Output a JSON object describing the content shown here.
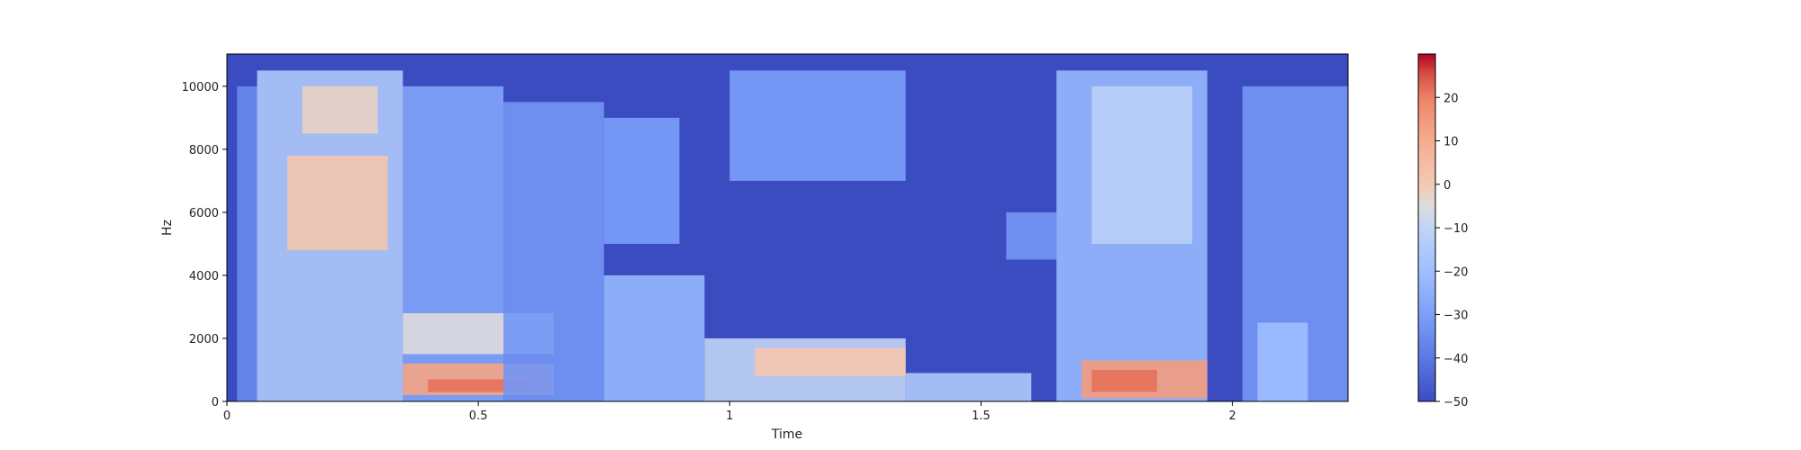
{
  "chart_data": {
    "type": "heatmap",
    "title": "",
    "xlabel": "Time",
    "ylabel": "Hz",
    "xlim": [
      0,
      2.23
    ],
    "ylim": [
      0,
      11025
    ],
    "x_ticks": [
      {
        "value": 0,
        "label": "0"
      },
      {
        "value": 0.5,
        "label": "0.5"
      },
      {
        "value": 1,
        "label": "1"
      },
      {
        "value": 1.5,
        "label": "1.5"
      },
      {
        "value": 2,
        "label": "2"
      }
    ],
    "y_ticks": [
      {
        "value": 0,
        "label": "0"
      },
      {
        "value": 2000,
        "label": "2000"
      },
      {
        "value": 4000,
        "label": "4000"
      },
      {
        "value": 6000,
        "label": "6000"
      },
      {
        "value": 8000,
        "label": "8000"
      },
      {
        "value": 10000,
        "label": "10000"
      }
    ],
    "colorbar": {
      "colormap": "coolwarm",
      "vmin": -50,
      "vmax": 30,
      "ticks": [
        {
          "value": 20,
          "label": "20"
        },
        {
          "value": 10,
          "label": "10"
        },
        {
          "value": 0,
          "label": "0"
        },
        {
          "value": -10,
          "label": "−10"
        },
        {
          "value": -20,
          "label": "−20"
        },
        {
          "value": -30,
          "label": "−30"
        },
        {
          "value": -40,
          "label": "−40"
        },
        {
          "value": -50,
          "label": "−50"
        }
      ]
    },
    "regions_db": [
      {
        "t": [
          0.0,
          0.02
        ],
        "f": [
          0,
          11025
        ],
        "db": -50
      },
      {
        "t": [
          0.02,
          0.06
        ],
        "f": [
          0,
          10000
        ],
        "db": -35
      },
      {
        "t": [
          0.06,
          0.35
        ],
        "f": [
          0,
          10500
        ],
        "db": -15
      },
      {
        "t": [
          0.12,
          0.32
        ],
        "f": [
          4800,
          7800
        ],
        "db": 2
      },
      {
        "t": [
          0.15,
          0.3
        ],
        "f": [
          8500,
          10000
        ],
        "db": -2
      },
      {
        "t": [
          0.35,
          0.55
        ],
        "f": [
          0,
          10000
        ],
        "db": -28
      },
      {
        "t": [
          0.35,
          0.65
        ],
        "f": [
          200,
          1200
        ],
        "db": 12
      },
      {
        "t": [
          0.4,
          0.6
        ],
        "f": [
          300,
          700
        ],
        "db": 22
      },
      {
        "t": [
          0.35,
          0.65
        ],
        "f": [
          1500,
          2800
        ],
        "db": -5
      },
      {
        "t": [
          0.55,
          0.75
        ],
        "f": [
          0,
          9500
        ],
        "db": -32
      },
      {
        "t": [
          0.75,
          0.95
        ],
        "f": [
          0,
          4000
        ],
        "db": -22
      },
      {
        "t": [
          0.75,
          0.9
        ],
        "f": [
          5000,
          9000
        ],
        "db": -30
      },
      {
        "t": [
          0.95,
          1.35
        ],
        "f": [
          0,
          2000
        ],
        "db": -10
      },
      {
        "t": [
          1.05,
          1.35
        ],
        "f": [
          800,
          1700
        ],
        "db": 2
      },
      {
        "t": [
          1.0,
          1.35
        ],
        "f": [
          7000,
          10500
        ],
        "db": -30
      },
      {
        "t": [
          1.35,
          1.6
        ],
        "f": [
          0,
          900
        ],
        "db": -15
      },
      {
        "t": [
          1.55,
          1.65
        ],
        "f": [
          4500,
          6000
        ],
        "db": -32
      },
      {
        "t": [
          1.65,
          1.95
        ],
        "f": [
          0,
          10500
        ],
        "db": -22
      },
      {
        "t": [
          1.7,
          1.95
        ],
        "f": [
          100,
          1300
        ],
        "db": 14
      },
      {
        "t": [
          1.72,
          1.85
        ],
        "f": [
          300,
          1000
        ],
        "db": 22
      },
      {
        "t": [
          1.72,
          1.92
        ],
        "f": [
          5000,
          10000
        ],
        "db": -12
      },
      {
        "t": [
          1.97,
          2.02
        ],
        "f": [
          0,
          11025
        ],
        "db": -50
      },
      {
        "t": [
          2.02,
          2.23
        ],
        "f": [
          0,
          10000
        ],
        "db": -32
      },
      {
        "t": [
          2.05,
          2.15
        ],
        "f": [
          0,
          2500
        ],
        "db": -20
      }
    ]
  }
}
